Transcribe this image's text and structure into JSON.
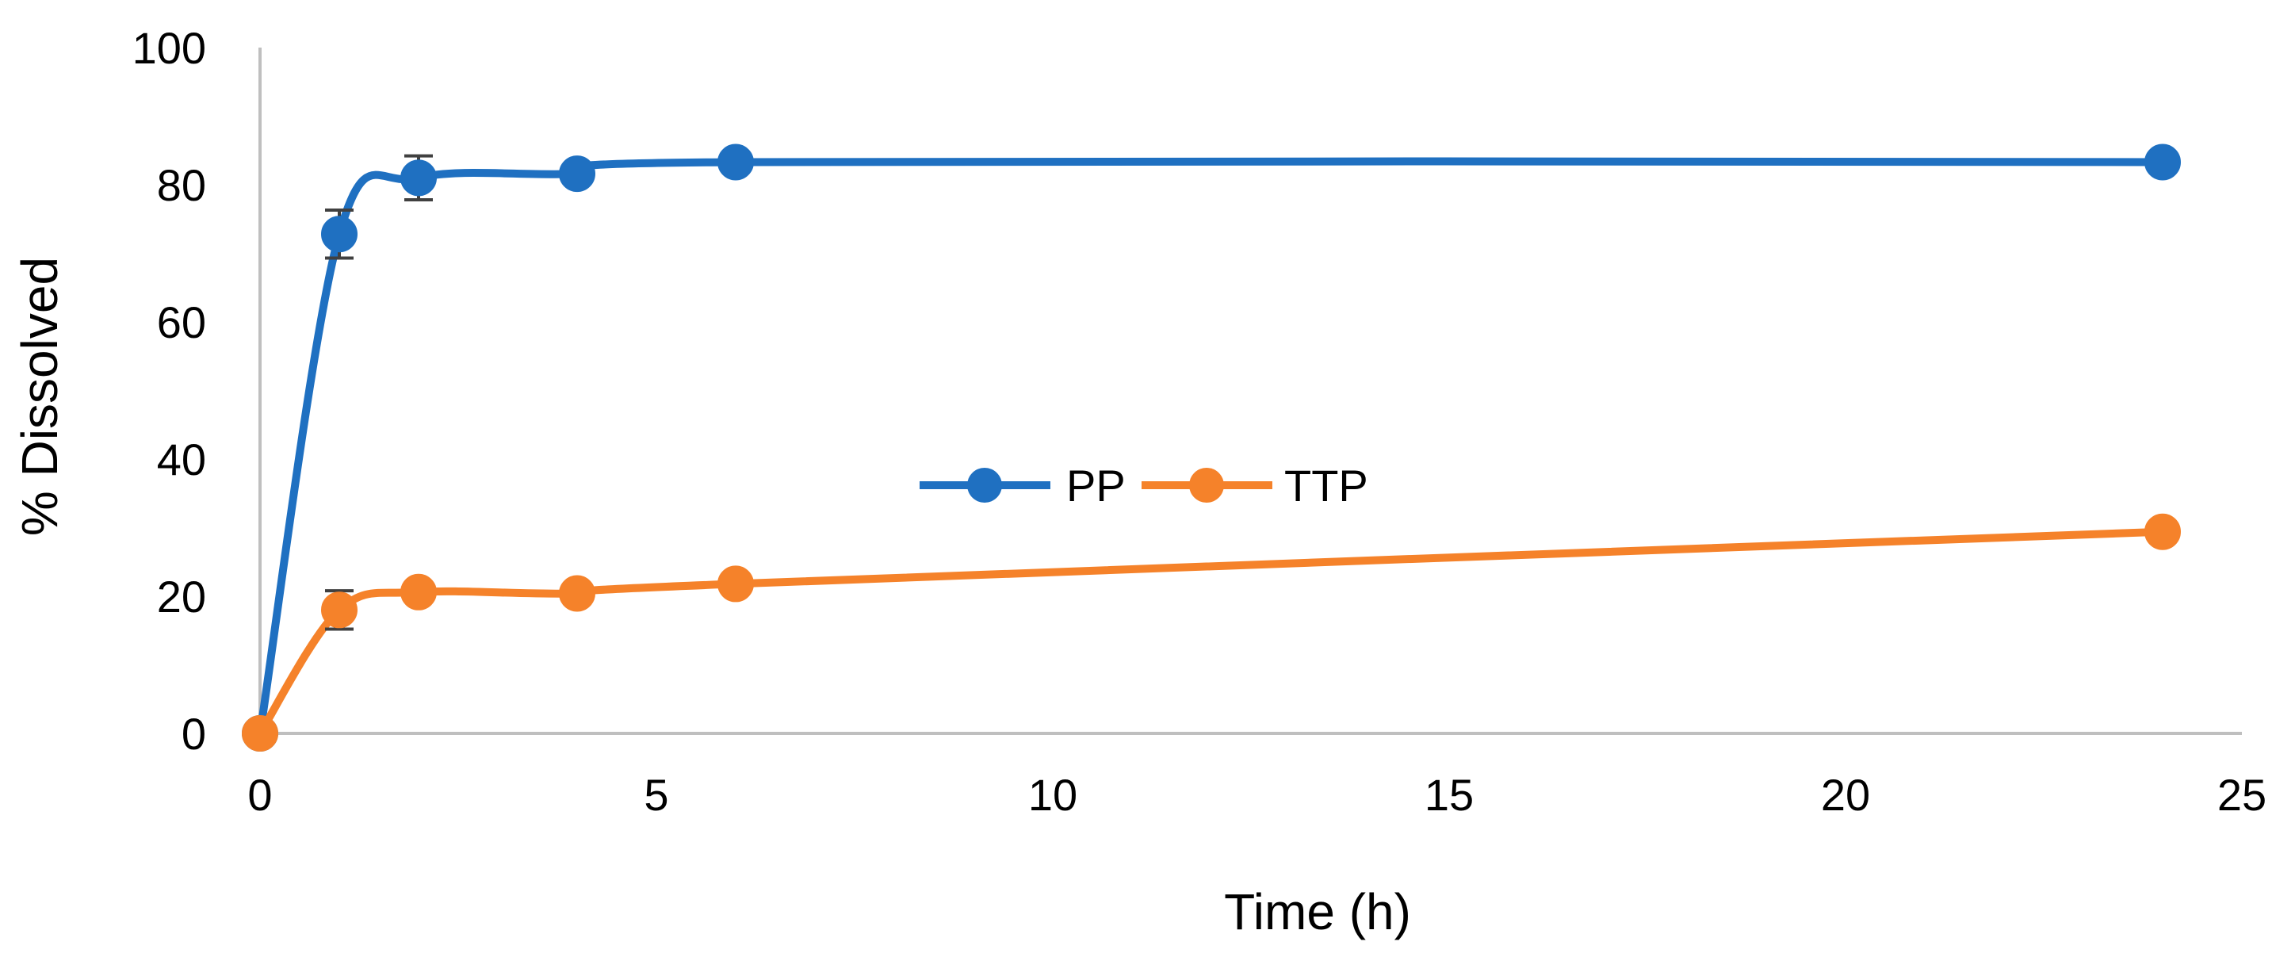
{
  "chart_data": {
    "type": "line",
    "title": "",
    "xlabel": "Time (h)",
    "ylabel": "% Dissolved",
    "xlim": [
      0,
      25
    ],
    "ylim": [
      0,
      100
    ],
    "xticks": [
      0,
      5,
      10,
      15,
      20,
      25
    ],
    "yticks": [
      0,
      20,
      40,
      60,
      80,
      100
    ],
    "grid": false,
    "legend_position": "center",
    "smooth": true,
    "series": [
      {
        "name": "PP",
        "color": "#1F70C1",
        "x": [
          0,
          1,
          2,
          4,
          6,
          24
        ],
        "y": [
          0,
          72.8,
          81,
          81.6,
          83.3,
          83.3
        ],
        "error": [
          0,
          3.5,
          3.2,
          0,
          0,
          0
        ]
      },
      {
        "name": "TTP",
        "color": "#F5822A",
        "x": [
          0,
          1,
          2,
          4,
          6,
          24
        ],
        "y": [
          0,
          18,
          20.6,
          20.4,
          21.8,
          29.4
        ],
        "error": [
          0,
          2.8,
          0,
          0,
          0,
          0
        ]
      }
    ]
  }
}
